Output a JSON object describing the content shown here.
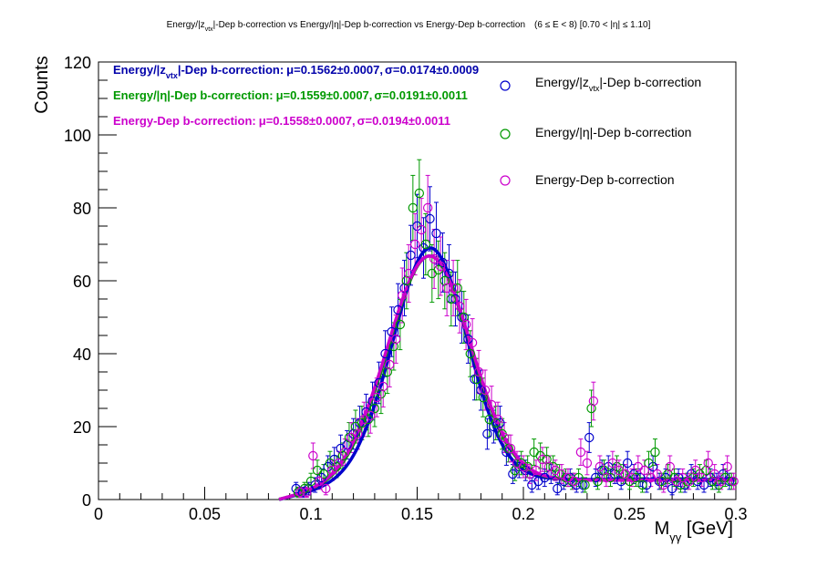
{
  "chart_data": {
    "type": "scatter",
    "title": {
      "prefix": "Energy/|z",
      "sub": "vtx",
      "rest": "|-Dep b-correction vs Energy/|η|-Dep b-correction vs Energy-Dep b-correction",
      "range": "(6 ≤ E < 8)   [0.70 < |η| ≤ 1.10]"
    },
    "xlabel": {
      "main": "M",
      "sub": "γγ",
      "unit": " [GeV]"
    },
    "ylabel": "Counts",
    "xlim": [
      0,
      0.3
    ],
    "ylim": [
      0,
      120
    ],
    "xticks": [
      "0",
      "0.05",
      "0.1",
      "0.15",
      "0.2",
      "0.25",
      "0.3"
    ],
    "xtick_values": [
      0,
      0.05,
      0.1,
      0.15,
      0.2,
      0.25,
      0.3
    ],
    "yticks": [
      "0",
      "20",
      "40",
      "60",
      "80",
      "100",
      "120"
    ],
    "ytick_values": [
      0,
      20,
      40,
      60,
      80,
      100,
      120
    ],
    "legend": [
      {
        "pre": "Energy/|z",
        "sub": "vtx",
        "post": "|-Dep b-correction",
        "color": "#0000cc"
      },
      {
        "pre": "Energy/|η|-Dep b-correction",
        "sub": "",
        "post": "",
        "color": "#009900"
      },
      {
        "pre": "Energy-Dep b-correction",
        "sub": "",
        "post": "",
        "color": "#cc00cc"
      }
    ],
    "fit_labels": [
      {
        "pre": "Energy/|z",
        "sub": "vtx",
        "post": "|-Dep b-correction:",
        "mu": "μ=0.1562±0.0007,",
        "sigma": "σ=0.0174±0.0009",
        "color": "#0000aa"
      },
      {
        "pre": "Energy/|η|-Dep b-correction:",
        "sub": "",
        "post": "",
        "mu": "μ=0.1559±0.0007,",
        "sigma": "σ=0.0191±0.0011",
        "color": "#009900"
      },
      {
        "pre": "Energy-Dep b-correction:",
        "sub": "",
        "post": "",
        "mu": "μ=0.1558±0.0007,",
        "sigma": "σ=0.0194±0.0011",
        "color": "#cc00cc"
      }
    ],
    "fits": [
      {
        "name": "Energy/|zvtx|-Dep b-correction",
        "color": "#0000cc",
        "amp": 63.5,
        "mu": 0.1562,
        "sigma": 0.0174,
        "bkg": 5.5
      },
      {
        "name": "Energy/|η|-Dep b-correction",
        "color": "#009900",
        "amp": 61.5,
        "mu": 0.1559,
        "sigma": 0.0191,
        "bkg": 5.3
      },
      {
        "name": "Energy-Dep b-correction",
        "color": "#cc00cc",
        "amp": 61.5,
        "mu": 0.1558,
        "sigma": 0.0194,
        "bkg": 5.3
      }
    ],
    "series": [
      {
        "name": "Energy/|zvtx|-Dep b-correction",
        "color": "#0000cc",
        "x": [
          0.093,
          0.096,
          0.099,
          0.102,
          0.105,
          0.108,
          0.111,
          0.114,
          0.117,
          0.12,
          0.123,
          0.126,
          0.129,
          0.132,
          0.135,
          0.138,
          0.141,
          0.144,
          0.147,
          0.15,
          0.153,
          0.156,
          0.159,
          0.162,
          0.165,
          0.168,
          0.171,
          0.174,
          0.177,
          0.18,
          0.183,
          0.186,
          0.189,
          0.192,
          0.195,
          0.198,
          0.201,
          0.204,
          0.207,
          0.21,
          0.213,
          0.216,
          0.219,
          0.222,
          0.225,
          0.228,
          0.231,
          0.234,
          0.237,
          0.24,
          0.243,
          0.246,
          0.249,
          0.252,
          0.255,
          0.258,
          0.261,
          0.264,
          0.267,
          0.27,
          0.273,
          0.276,
          0.279,
          0.282,
          0.285,
          0.288,
          0.291,
          0.294,
          0.297
        ],
        "y": [
          3,
          2,
          3,
          4,
          6,
          9,
          11,
          14,
          15,
          18,
          21,
          24,
          27,
          32,
          40,
          46,
          52,
          58,
          67,
          75,
          69,
          77,
          73,
          65,
          62,
          55,
          50,
          44,
          33,
          30,
          18,
          20,
          21,
          13,
          7,
          9,
          8,
          4,
          5,
          6,
          7,
          3,
          5,
          6,
          4,
          4,
          17,
          6,
          8,
          9,
          7,
          5,
          10,
          7,
          6,
          4,
          9,
          5,
          6,
          3,
          6,
          4,
          7,
          5,
          4,
          6,
          5,
          7,
          5
        ],
        "err": [
          1.7,
          1.4,
          1.7,
          2.0,
          2.4,
          3.0,
          3.3,
          3.7,
          3.9,
          4.2,
          4.6,
          4.9,
          5.2,
          5.7,
          6.3,
          6.8,
          7.2,
          7.6,
          8.2,
          8.7,
          8.3,
          8.8,
          8.5,
          8.1,
          7.9,
          7.4,
          7.1,
          6.6,
          5.7,
          5.5,
          4.2,
          4.5,
          4.6,
          3.6,
          2.6,
          3.0,
          2.8,
          2.0,
          2.2,
          2.4,
          2.6,
          1.7,
          2.2,
          2.4,
          2.0,
          2.0,
          4.1,
          2.4,
          2.8,
          3.0,
          2.6,
          2.2,
          3.2,
          2.6,
          2.4,
          2.0,
          3.0,
          2.2,
          2.4,
          1.7,
          2.4,
          2.0,
          2.6,
          2.2,
          2.0,
          2.4,
          2.2,
          2.6,
          2.2
        ]
      },
      {
        "name": "Energy/|η|-Dep b-correction",
        "color": "#009900",
        "x": [
          0.094,
          0.097,
          0.1,
          0.103,
          0.106,
          0.109,
          0.112,
          0.115,
          0.118,
          0.121,
          0.124,
          0.127,
          0.13,
          0.133,
          0.136,
          0.139,
          0.142,
          0.145,
          0.148,
          0.151,
          0.154,
          0.157,
          0.16,
          0.163,
          0.166,
          0.169,
          0.172,
          0.175,
          0.178,
          0.181,
          0.184,
          0.187,
          0.19,
          0.193,
          0.196,
          0.199,
          0.202,
          0.205,
          0.208,
          0.211,
          0.214,
          0.217,
          0.22,
          0.223,
          0.226,
          0.229,
          0.232,
          0.235,
          0.238,
          0.241,
          0.244,
          0.247,
          0.25,
          0.253,
          0.256,
          0.259,
          0.262,
          0.265,
          0.268,
          0.271,
          0.274,
          0.277,
          0.28,
          0.283,
          0.286,
          0.289,
          0.292,
          0.295,
          0.298
        ],
        "y": [
          2,
          3,
          5,
          8,
          7,
          10,
          9,
          12,
          17,
          20,
          21,
          22,
          25,
          29,
          35,
          42,
          48,
          60,
          80,
          84,
          70,
          62,
          63,
          60,
          55,
          58,
          50,
          40,
          33,
          28,
          22,
          21,
          18,
          14,
          8,
          10,
          9,
          13,
          12,
          11,
          9,
          7,
          6,
          5,
          6,
          4,
          25,
          5,
          8,
          6,
          9,
          7,
          5,
          6,
          4,
          10,
          13,
          5,
          7,
          6,
          4,
          5,
          6,
          7,
          8,
          5,
          4,
          6,
          5
        ],
        "err": [
          1.4,
          1.7,
          2.2,
          2.8,
          2.6,
          3.2,
          3.0,
          3.5,
          4.1,
          4.5,
          4.6,
          4.7,
          5.0,
          5.4,
          5.9,
          6.5,
          6.9,
          7.7,
          8.9,
          9.2,
          8.4,
          7.9,
          7.9,
          7.7,
          7.4,
          7.6,
          7.1,
          6.3,
          5.7,
          5.3,
          4.7,
          4.6,
          4.2,
          3.7,
          2.8,
          3.2,
          3.0,
          3.6,
          3.5,
          3.3,
          3.0,
          2.6,
          2.4,
          2.2,
          2.4,
          2.0,
          5.0,
          2.2,
          2.8,
          2.4,
          3.0,
          2.6,
          2.2,
          2.4,
          2.0,
          3.2,
          3.6,
          2.2,
          2.6,
          2.4,
          2.0,
          2.2,
          2.4,
          2.6,
          2.8,
          2.2,
          2.0,
          2.4,
          2.2
        ]
      },
      {
        "name": "Energy-Dep b-correction",
        "color": "#cc00cc",
        "x": [
          0.095,
          0.098,
          0.101,
          0.104,
          0.107,
          0.11,
          0.113,
          0.116,
          0.119,
          0.122,
          0.125,
          0.128,
          0.131,
          0.134,
          0.137,
          0.14,
          0.143,
          0.146,
          0.149,
          0.152,
          0.155,
          0.158,
          0.161,
          0.164,
          0.167,
          0.17,
          0.173,
          0.176,
          0.179,
          0.182,
          0.185,
          0.188,
          0.191,
          0.194,
          0.197,
          0.2,
          0.203,
          0.206,
          0.209,
          0.212,
          0.215,
          0.218,
          0.221,
          0.224,
          0.227,
          0.23,
          0.233,
          0.236,
          0.239,
          0.242,
          0.245,
          0.248,
          0.251,
          0.254,
          0.257,
          0.26,
          0.263,
          0.266,
          0.269,
          0.272,
          0.275,
          0.278,
          0.281,
          0.284,
          0.287,
          0.29,
          0.293,
          0.296,
          0.299
        ],
        "y": [
          2,
          2,
          12,
          5,
          3,
          8,
          10,
          13,
          17,
          18,
          22,
          23,
          28,
          31,
          37,
          44,
          56,
          62,
          70,
          74,
          80,
          66,
          64,
          58,
          58,
          53,
          48,
          43,
          35,
          30,
          26,
          22,
          17,
          14,
          10,
          9,
          7,
          8,
          11,
          9,
          8,
          7,
          6,
          5,
          13,
          10,
          27,
          9,
          6,
          10,
          8,
          7,
          6,
          9,
          8,
          6,
          7,
          4,
          9,
          5,
          6,
          5,
          8,
          6,
          10,
          7,
          5,
          9,
          5
        ],
        "err": [
          1.4,
          1.4,
          3.5,
          2.2,
          1.7,
          2.8,
          3.2,
          3.6,
          4.1,
          4.2,
          4.7,
          4.8,
          5.3,
          5.6,
          6.1,
          6.6,
          7.5,
          7.9,
          8.4,
          8.6,
          8.9,
          8.1,
          8.0,
          7.6,
          7.6,
          7.3,
          6.9,
          6.6,
          5.9,
          5.5,
          5.1,
          4.7,
          4.1,
          3.7,
          3.2,
          3.0,
          2.6,
          2.8,
          3.3,
          3.0,
          2.8,
          2.6,
          2.4,
          2.2,
          3.6,
          3.2,
          5.2,
          3.0,
          2.4,
          3.2,
          2.8,
          2.6,
          2.4,
          3.0,
          2.8,
          2.4,
          2.6,
          2.0,
          3.0,
          2.2,
          2.4,
          2.2,
          2.8,
          2.4,
          3.2,
          2.6,
          2.2,
          3.0,
          2.2
        ]
      }
    ]
  }
}
